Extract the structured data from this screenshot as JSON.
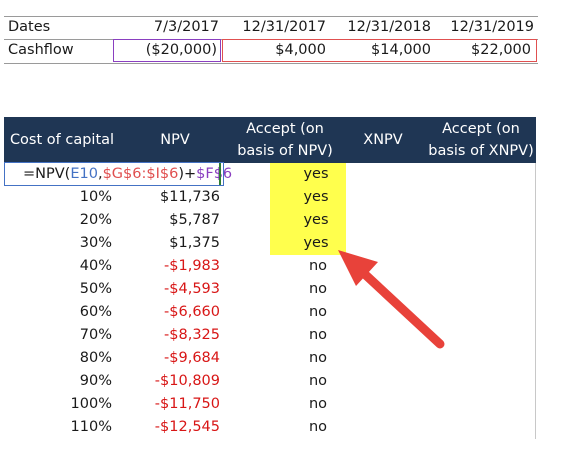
{
  "top_table": {
    "dates_label": "Dates",
    "cashflow_label": "Cashflow",
    "dates": [
      "7/3/2017",
      "12/31/2017",
      "12/31/2018",
      "12/31/2019"
    ],
    "cashflows": [
      "($20,000)",
      "$4,000",
      "$14,000",
      "$22,000"
    ]
  },
  "header": {
    "col1": "Cost of capital",
    "col2": "NPV",
    "col3_line1": "Accept (on",
    "col3_line2": "basis of NPV)",
    "col4": "XNPV",
    "col5_line1": "Accept (on",
    "col5_line2": "basis of XNPV)"
  },
  "formula": {
    "prefix": "=NPV(",
    "arg1": "E10",
    "comma": ",",
    "arg2": "$G$6:$I$6",
    "close": ")+",
    "arg3": "$F$6"
  },
  "rows": [
    {
      "rate": "",
      "npv": "",
      "accept": "yes"
    },
    {
      "rate": "10%",
      "npv": "$11,736",
      "accept": "yes"
    },
    {
      "rate": "20%",
      "npv": "$5,787",
      "accept": "yes"
    },
    {
      "rate": "30%",
      "npv": "$1,375",
      "accept": "yes"
    },
    {
      "rate": "40%",
      "npv": "-$1,983",
      "accept": "no"
    },
    {
      "rate": "50%",
      "npv": "-$4,593",
      "accept": "no"
    },
    {
      "rate": "60%",
      "npv": "-$6,660",
      "accept": "no"
    },
    {
      "rate": "70%",
      "npv": "-$8,325",
      "accept": "no"
    },
    {
      "rate": "80%",
      "npv": "-$9,684",
      "accept": "no"
    },
    {
      "rate": "90%",
      "npv": "-$10,809",
      "accept": "no"
    },
    {
      "rate": "100%",
      "npv": "-$11,750",
      "accept": "no"
    },
    {
      "rate": "110%",
      "npv": "-$12,545",
      "accept": "no"
    }
  ],
  "colors": {
    "header_bg": "#1f3654",
    "negative": "#d81616",
    "highlight": "#ffff4d",
    "arrow": "#e8423a",
    "ref_blue": "#4472c4",
    "ref_red": "#e05050",
    "ref_purple": "#8a3fc0",
    "ref_green": "#2e7d32"
  }
}
